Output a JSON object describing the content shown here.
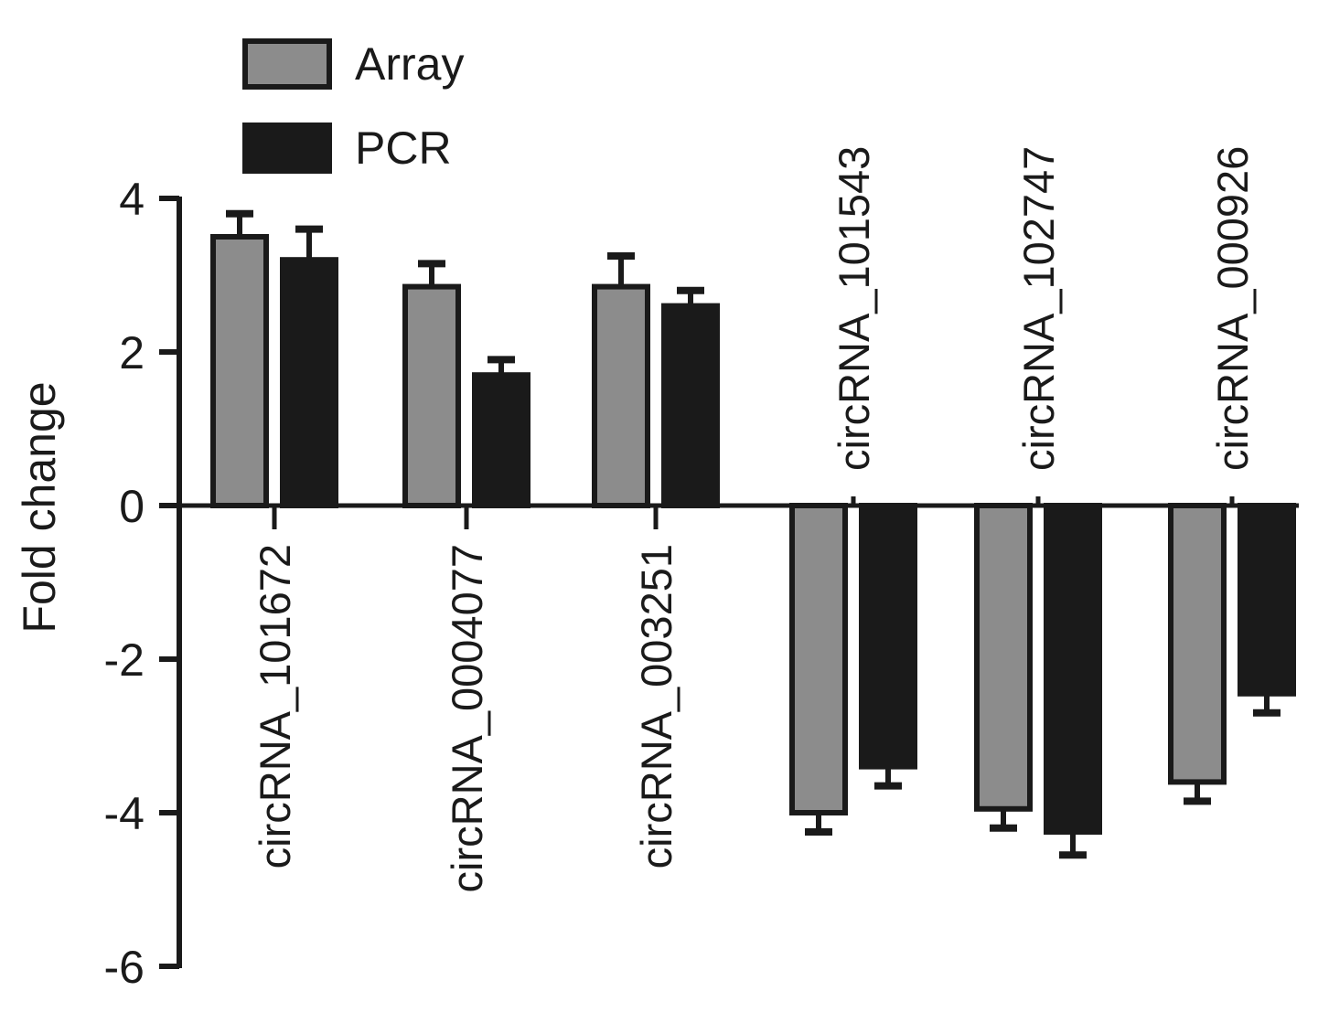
{
  "chart_data": {
    "type": "bar",
    "ylabel": "Fold change",
    "xlabel": "",
    "ylim": [
      -6,
      4
    ],
    "yticks": [
      4,
      2,
      0,
      -2,
      -4,
      -6
    ],
    "categories": [
      "circRNA_101672",
      "circRNA_0004077",
      "circRNA_003251",
      "circRNA_101543",
      "circRNA_102747",
      "circRNA_000926"
    ],
    "series": [
      {
        "name": "Array",
        "color": "#8c8c8c",
        "values": [
          3.5,
          2.85,
          2.85,
          -4.0,
          -3.95,
          -3.6
        ],
        "errors": [
          0.3,
          0.3,
          0.4,
          0.25,
          0.25,
          0.25
        ]
      },
      {
        "name": "PCR",
        "color": "#1a1a1a",
        "values": [
          3.2,
          1.7,
          2.6,
          -3.4,
          -4.25,
          -2.45
        ],
        "errors": [
          0.4,
          0.2,
          0.2,
          0.25,
          0.3,
          0.25
        ]
      }
    ],
    "legend": {
      "position": "top-left"
    },
    "grid": false
  }
}
